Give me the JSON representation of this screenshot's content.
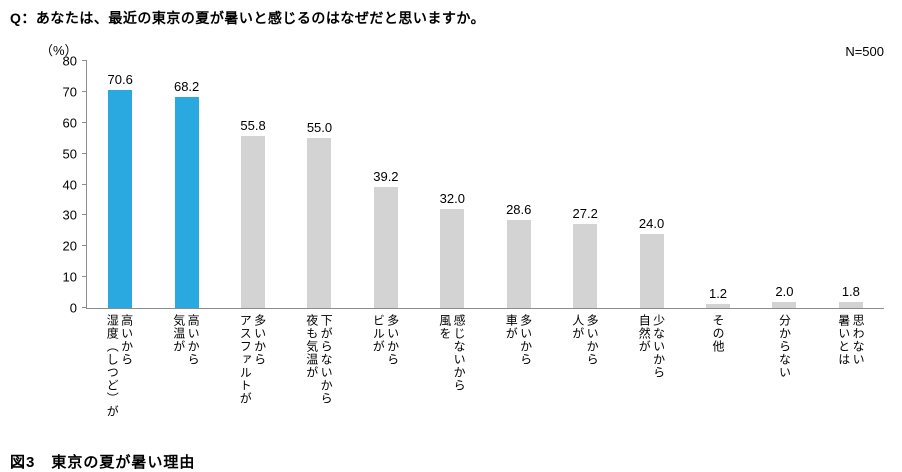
{
  "title": "Q：あなたは、最近の東京の夏が暑いと感じるのはなぜだと思いますか。",
  "y_unit": "（%）",
  "n_label": "N=500",
  "caption": "図3　東京の夏が暑い理由",
  "chart_data": {
    "type": "bar",
    "title": "東京の夏が暑い理由",
    "sample_size": "N=500",
    "ylabel": "（%）",
    "ylim": [
      0,
      80
    ],
    "yticks": [
      0,
      10,
      20,
      30,
      40,
      50,
      60,
      70,
      80
    ],
    "grid": false,
    "categories": [
      "湿度（しつど）が\n高いから",
      "気温が\n高いから",
      "アスファルトが\n多いから",
      "夜も気温が\n下がらないから",
      "ビルが\n多いから",
      "風を\n感じないから",
      "車が\n多いから",
      "人が\n多いから",
      "自然が\n少ないから",
      "その他",
      "分からない",
      "暑いとは\n思わない"
    ],
    "values": [
      70.6,
      68.2,
      55.8,
      55.0,
      39.2,
      32.0,
      28.6,
      27.2,
      24.0,
      1.2,
      2.0,
      1.8
    ],
    "highlight_indices": [
      0,
      1
    ],
    "highlight_color": "#29a9e0",
    "bar_color": "#d3d3d3"
  }
}
